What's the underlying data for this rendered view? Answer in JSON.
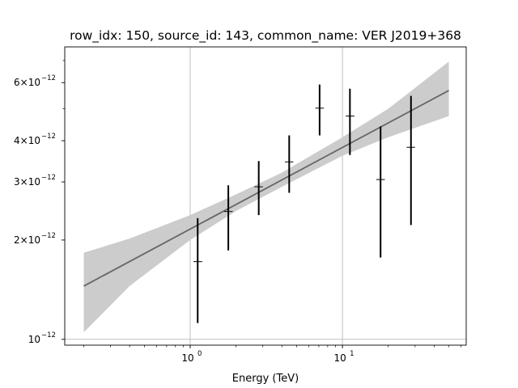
{
  "chart_data": {
    "type": "scatter",
    "title": "row_idx: 150, source_id: 143, common_name: VER J2019+368",
    "xlabel": "Energy (TeV)",
    "ylabel": "",
    "x_scale": "log",
    "y_scale": "log",
    "xlim": [
      0.15,
      65
    ],
    "ylim": [
      9.6e-13,
      7.7e-12
    ],
    "grid": "major x and y",
    "x_ticks": [
      {
        "value": 1,
        "base": "10",
        "exp": "0"
      },
      {
        "value": 10,
        "base": "10",
        "exp": "1"
      }
    ],
    "y_ticks": [
      {
        "value": 1e-12,
        "mant": "10",
        "exp": "−12"
      },
      {
        "value": 2e-12,
        "mant": "2×10",
        "exp": "−12"
      },
      {
        "value": 3e-12,
        "mant": "3×10",
        "exp": "−12"
      },
      {
        "value": 4e-12,
        "mant": "4×10",
        "exp": "−12"
      },
      {
        "value": 6e-12,
        "mant": "6×10",
        "exp": "−12"
      }
    ],
    "points": [
      {
        "x": 1.12,
        "y": 1.72e-12,
        "y_low": 1.12e-12,
        "y_high": 2.33e-12,
        "x_low": 1.05,
        "x_high": 1.2
      },
      {
        "x": 1.78,
        "y": 2.44e-12,
        "y_low": 1.86e-12,
        "y_high": 2.93e-12,
        "x_low": 1.67,
        "x_high": 1.9
      },
      {
        "x": 2.82,
        "y": 2.9e-12,
        "y_low": 2.38e-12,
        "y_high": 3.47e-12,
        "x_low": 2.64,
        "x_high": 3.0
      },
      {
        "x": 4.47,
        "y": 3.45e-12,
        "y_low": 2.78e-12,
        "y_high": 4.15e-12,
        "x_low": 4.19,
        "x_high": 4.76
      },
      {
        "x": 7.08,
        "y": 5.02e-12,
        "y_low": 4.15e-12,
        "y_high": 5.92e-12,
        "x_low": 6.64,
        "x_high": 7.55
      },
      {
        "x": 11.2,
        "y": 4.75e-12,
        "y_low": 3.62e-12,
        "y_high": 5.75e-12,
        "x_low": 10.5,
        "x_high": 12.0
      },
      {
        "x": 17.8,
        "y": 3.05e-12,
        "y_low": 1.77e-12,
        "y_high": 4.42e-12,
        "x_low": 16.7,
        "x_high": 19.0
      },
      {
        "x": 28.2,
        "y": 3.82e-12,
        "y_low": 2.22e-12,
        "y_high": 5.47e-12,
        "x_low": 26.4,
        "x_high": 30.0
      }
    ],
    "model_line": {
      "x": [
        0.2,
        50
      ],
      "y": [
        1.45e-12,
        5.68e-12
      ],
      "color": "#666666"
    },
    "confidence_band": {
      "x": [
        0.2,
        0.4,
        1.0,
        2.0,
        4.0,
        10.0,
        20.0,
        50.0
      ],
      "low": [
        1.05e-12,
        1.45e-12,
        2e-12,
        2.45e-12,
        2.9e-12,
        3.6e-12,
        4.1e-12,
        4.75e-12
      ],
      "high": [
        1.83e-12,
        2.02e-12,
        2.38e-12,
        2.75e-12,
        3.2e-12,
        4.1e-12,
        5e-12,
        6.95e-12
      ],
      "color": "#cccccc"
    },
    "colors": {
      "points": "#000000",
      "grid": "#b0b0b0"
    }
  }
}
